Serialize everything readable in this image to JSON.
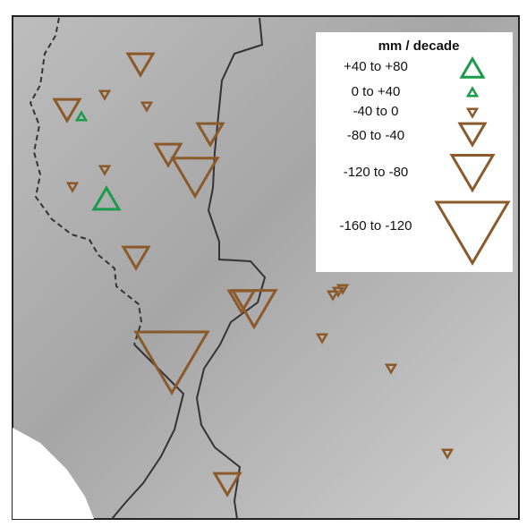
{
  "legend": {
    "title": "mm / decade",
    "entries": [
      "+40 to +80",
      "0 to +40",
      "-40 to 0",
      "-80 to -40",
      "-120 to -80",
      "-160 to -120"
    ]
  }
}
